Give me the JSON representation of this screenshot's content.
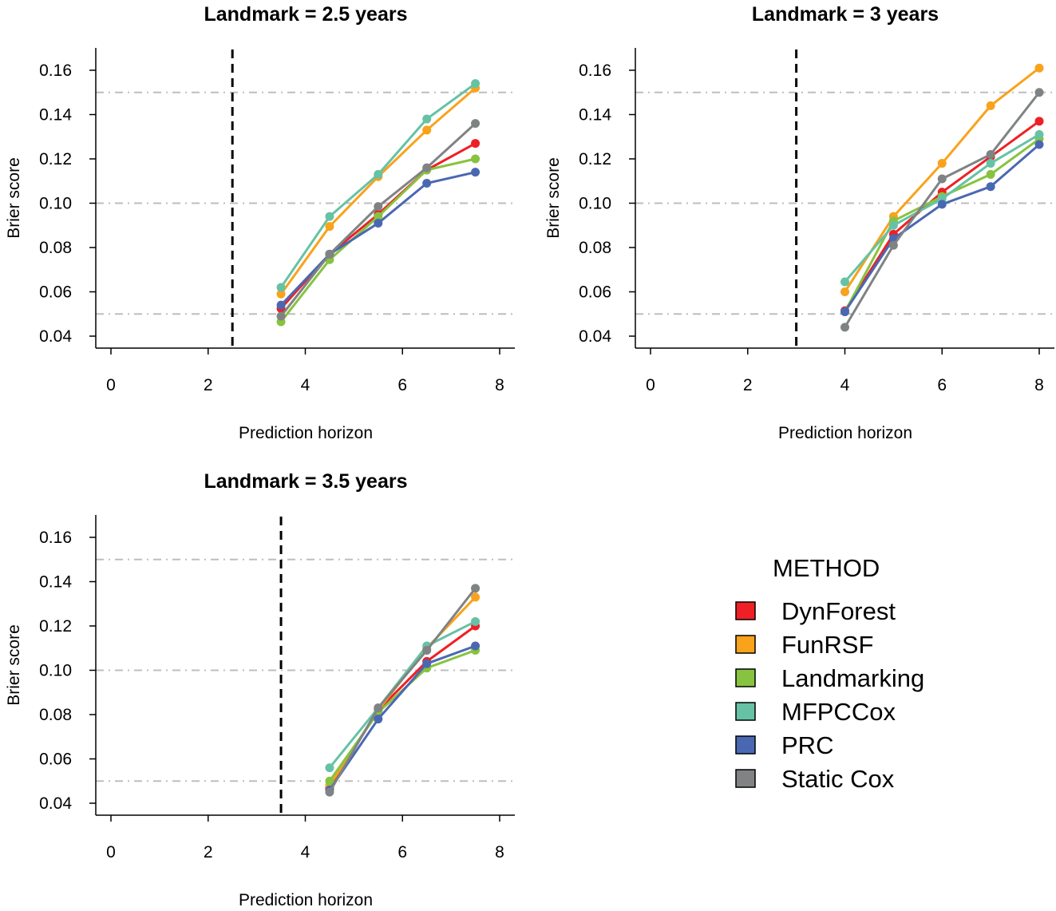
{
  "chart_data": [
    {
      "type": "line",
      "title": "Landmark = 2.5 years",
      "xlabel": "Prediction horizon",
      "ylabel": "Brier score",
      "xlim": [
        0,
        8
      ],
      "ylim": [
        0.04,
        0.16
      ],
      "xticks": [
        "0",
        "2",
        "4",
        "6",
        "8"
      ],
      "yticks": [
        "0.04",
        "0.06",
        "0.08",
        "0.10",
        "0.12",
        "0.14",
        "0.16"
      ],
      "landmark": 2.5,
      "reference_lines": [
        0.05,
        0.1,
        0.15
      ],
      "x": [
        3.5,
        4.5,
        5.5,
        6.5,
        7.5
      ],
      "series": [
        {
          "name": "DynForest",
          "values": [
            0.0525,
            0.077,
            0.095,
            0.115,
            0.127
          ]
        },
        {
          "name": "FunRSF",
          "values": [
            0.059,
            0.0895,
            0.112,
            0.133,
            0.152
          ]
        },
        {
          "name": "Landmarking",
          "values": [
            0.0465,
            0.0745,
            0.094,
            0.115,
            0.12
          ]
        },
        {
          "name": "MFPCCox",
          "values": [
            0.062,
            0.094,
            0.113,
            0.138,
            0.154
          ]
        },
        {
          "name": "PRC",
          "values": [
            0.054,
            0.077,
            0.091,
            0.109,
            0.114
          ]
        },
        {
          "name": "Static Cox",
          "values": [
            0.049,
            0.077,
            0.0985,
            0.116,
            0.136
          ]
        }
      ]
    },
    {
      "type": "line",
      "title": "Landmark = 3 years",
      "xlabel": "Prediction horizon",
      "ylabel": "Brier score",
      "xlim": [
        0,
        8
      ],
      "ylim": [
        0.04,
        0.16
      ],
      "xticks": [
        "0",
        "2",
        "4",
        "6",
        "8"
      ],
      "yticks": [
        "0.04",
        "0.06",
        "0.08",
        "0.10",
        "0.12",
        "0.14",
        "0.16"
      ],
      "landmark": 3,
      "reference_lines": [
        0.05,
        0.1,
        0.15
      ],
      "x": [
        4,
        5,
        6,
        7,
        8
      ],
      "series": [
        {
          "name": "DynForest",
          "values": [
            0.0515,
            0.086,
            0.105,
            0.121,
            0.137
          ]
        },
        {
          "name": "FunRSF",
          "values": [
            0.06,
            0.094,
            0.118,
            0.144,
            0.161
          ]
        },
        {
          "name": "Landmarking",
          "values": [
            0.051,
            0.092,
            0.103,
            0.113,
            0.129
          ]
        },
        {
          "name": "MFPCCox",
          "values": [
            0.0645,
            0.09,
            0.102,
            0.118,
            0.131
          ]
        },
        {
          "name": "PRC",
          "values": [
            0.051,
            0.084,
            0.0995,
            0.1075,
            0.1265
          ]
        },
        {
          "name": "Static Cox",
          "values": [
            0.044,
            0.081,
            0.111,
            0.122,
            0.15
          ]
        }
      ]
    },
    {
      "type": "line",
      "title": "Landmark = 3.5 years",
      "xlabel": "Prediction horizon",
      "ylabel": "Brier score",
      "xlim": [
        0,
        8
      ],
      "ylim": [
        0.04,
        0.16
      ],
      "xticks": [
        "0",
        "2",
        "4",
        "6",
        "8"
      ],
      "yticks": [
        "0.04",
        "0.06",
        "0.08",
        "0.10",
        "0.12",
        "0.14",
        "0.16"
      ],
      "landmark": 3.5,
      "reference_lines": [
        0.05,
        0.1,
        0.15
      ],
      "x": [
        4.5,
        5.5,
        6.5,
        7.5
      ],
      "series": [
        {
          "name": "DynForest",
          "values": [
            0.047,
            0.082,
            0.104,
            0.12
          ]
        },
        {
          "name": "FunRSF",
          "values": [
            0.048,
            0.082,
            0.11,
            0.133
          ]
        },
        {
          "name": "Landmarking",
          "values": [
            0.05,
            0.081,
            0.101,
            0.109
          ]
        },
        {
          "name": "MFPCCox",
          "values": [
            0.056,
            0.083,
            0.111,
            0.122
          ]
        },
        {
          "name": "PRC",
          "values": [
            0.046,
            0.078,
            0.103,
            0.111
          ]
        },
        {
          "name": "Static Cox",
          "values": [
            0.045,
            0.083,
            0.109,
            0.137
          ]
        }
      ]
    }
  ],
  "legend": {
    "title": "METHOD",
    "items": [
      {
        "label": "DynForest",
        "color": "#EE2026"
      },
      {
        "label": "FunRSF",
        "color": "#F9A21B"
      },
      {
        "label": "Landmarking",
        "color": "#87C33F"
      },
      {
        "label": "MFPCCox",
        "color": "#66C2A5"
      },
      {
        "label": "PRC",
        "color": "#4A68B2"
      },
      {
        "label": "Static Cox",
        "color": "#7F8384"
      }
    ]
  }
}
